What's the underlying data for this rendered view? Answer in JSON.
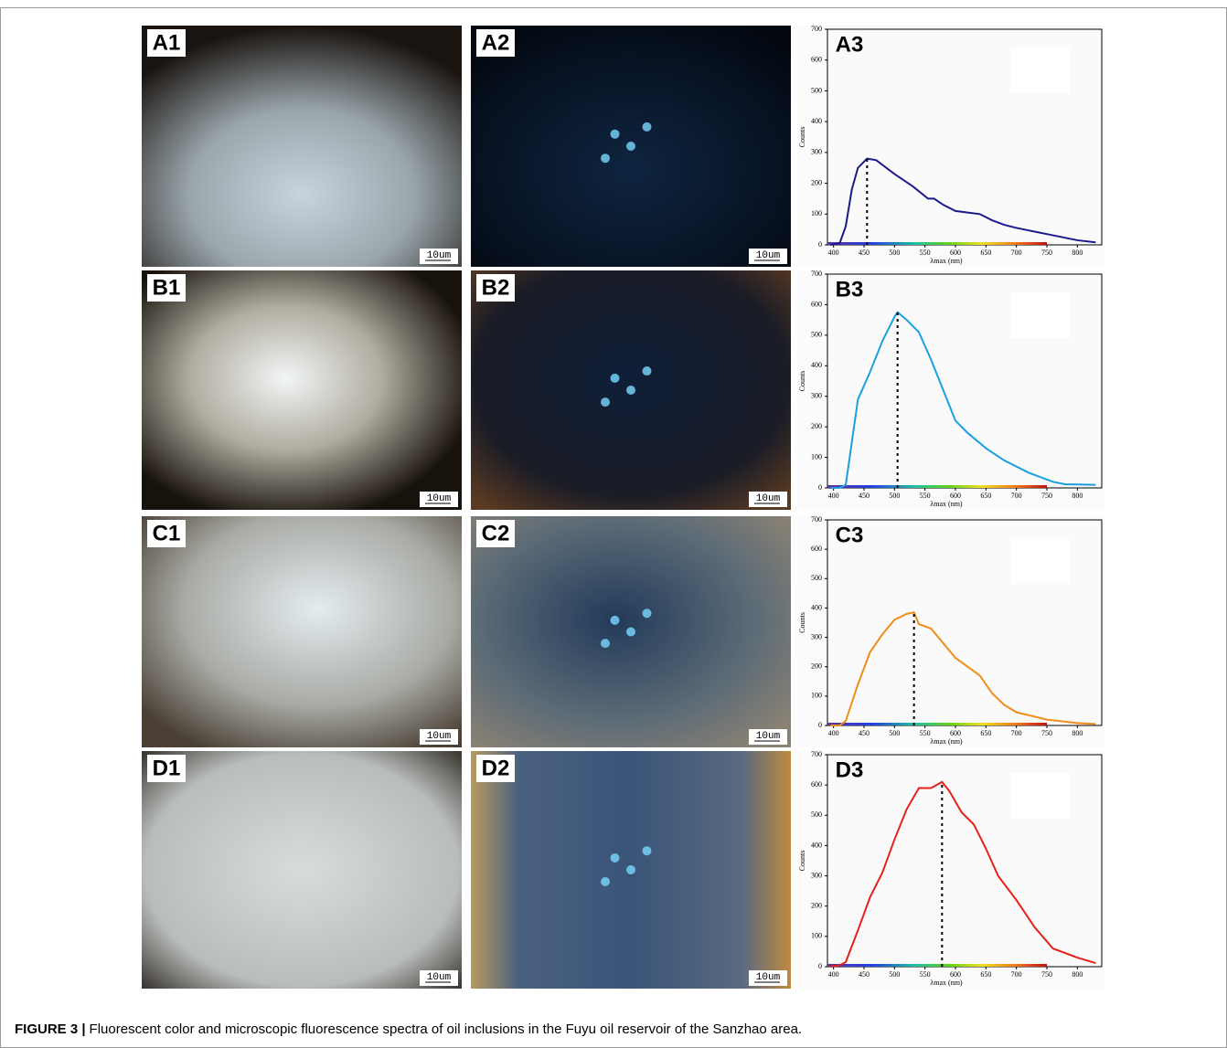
{
  "panels": [
    {
      "label": "A1",
      "scale_bar": "10um"
    },
    {
      "label": "A2",
      "scale_bar": "10um"
    },
    {
      "label": "B1",
      "scale_bar": "10um"
    },
    {
      "label": "B2",
      "scale_bar": "10um"
    },
    {
      "label": "C1",
      "scale_bar": "10um"
    },
    {
      "label": "C2",
      "scale_bar": "10um"
    },
    {
      "label": "D1",
      "scale_bar": "10um"
    },
    {
      "label": "D2",
      "scale_bar": "10um"
    }
  ],
  "chart_data": [
    {
      "type": "line",
      "title": "A3",
      "x_label": "λmax (nm)",
      "y_label": "Counts",
      "xlim": [
        390,
        840
      ],
      "ylim": [
        0,
        700
      ],
      "xticks": [
        400,
        450,
        500,
        550,
        600,
        650,
        700,
        750,
        800
      ],
      "yticks": [
        0,
        100,
        200,
        300,
        400,
        500,
        600,
        700
      ],
      "peak_x": 455,
      "series": [
        {
          "color": "#1a1a8c",
          "x": [
            395,
            410,
            420,
            430,
            440,
            455,
            470,
            500,
            530,
            555,
            565,
            580,
            600,
            620,
            640,
            660,
            680,
            700,
            750,
            800,
            830
          ],
          "values": [
            0,
            5,
            60,
            180,
            250,
            280,
            275,
            230,
            190,
            150,
            150,
            130,
            110,
            105,
            100,
            80,
            65,
            55,
            35,
            15,
            8
          ]
        }
      ]
    },
    {
      "type": "line",
      "title": "B3",
      "x_label": "λmax (nm)",
      "y_label": "Counts",
      "xlim": [
        390,
        840
      ],
      "ylim": [
        0,
        700
      ],
      "xticks": [
        400,
        450,
        500,
        550,
        600,
        650,
        700,
        750,
        800
      ],
      "yticks": [
        0,
        100,
        200,
        300,
        400,
        500,
        600,
        700
      ],
      "peak_x": 505,
      "series": [
        {
          "color": "#1aa0e0",
          "x": [
            395,
            410,
            420,
            430,
            440,
            460,
            480,
            500,
            505,
            520,
            540,
            560,
            580,
            600,
            620,
            650,
            680,
            720,
            760,
            780,
            830
          ],
          "values": [
            0,
            0,
            10,
            150,
            290,
            380,
            480,
            560,
            575,
            550,
            510,
            420,
            320,
            220,
            180,
            130,
            90,
            50,
            20,
            12,
            10
          ]
        }
      ]
    },
    {
      "type": "line",
      "title": "C3",
      "x_label": "λmax (nm)",
      "y_label": "Counts",
      "xlim": [
        390,
        840
      ],
      "ylim": [
        0,
        700
      ],
      "xticks": [
        400,
        450,
        500,
        550,
        600,
        650,
        700,
        750,
        800
      ],
      "yticks": [
        0,
        100,
        200,
        300,
        400,
        500,
        600,
        700
      ],
      "peak_x": 532,
      "series": [
        {
          "color": "#f08c1a",
          "x": [
            395,
            410,
            420,
            440,
            460,
            480,
            500,
            520,
            532,
            540,
            560,
            580,
            600,
            620,
            640,
            660,
            680,
            700,
            750,
            800,
            830
          ],
          "values": [
            0,
            0,
            15,
            140,
            250,
            310,
            360,
            380,
            385,
            345,
            330,
            280,
            230,
            200,
            170,
            110,
            70,
            45,
            20,
            8,
            5
          ]
        }
      ]
    },
    {
      "type": "line",
      "title": "D3",
      "x_label": "λmax (nm)",
      "y_label": "Counts",
      "xlim": [
        390,
        840
      ],
      "ylim": [
        0,
        700
      ],
      "xticks": [
        400,
        450,
        500,
        550,
        600,
        650,
        700,
        750,
        800
      ],
      "yticks": [
        0,
        100,
        200,
        300,
        400,
        500,
        600,
        700
      ],
      "peak_x": 578,
      "series": [
        {
          "color": "#e8201a",
          "x": [
            395,
            410,
            420,
            440,
            460,
            480,
            500,
            520,
            540,
            560,
            578,
            590,
            610,
            630,
            650,
            670,
            700,
            730,
            760,
            800,
            830
          ],
          "values": [
            0,
            5,
            15,
            120,
            230,
            310,
            420,
            520,
            590,
            590,
            610,
            580,
            510,
            470,
            390,
            300,
            220,
            130,
            60,
            30,
            12
          ]
        }
      ]
    }
  ],
  "caption": {
    "label": "FIGURE 3 |",
    "text": "Fluorescent color and microscopic fluorescence spectra of oil inclusions in the Fuyu oil reservoir of the Sanzhao area."
  }
}
